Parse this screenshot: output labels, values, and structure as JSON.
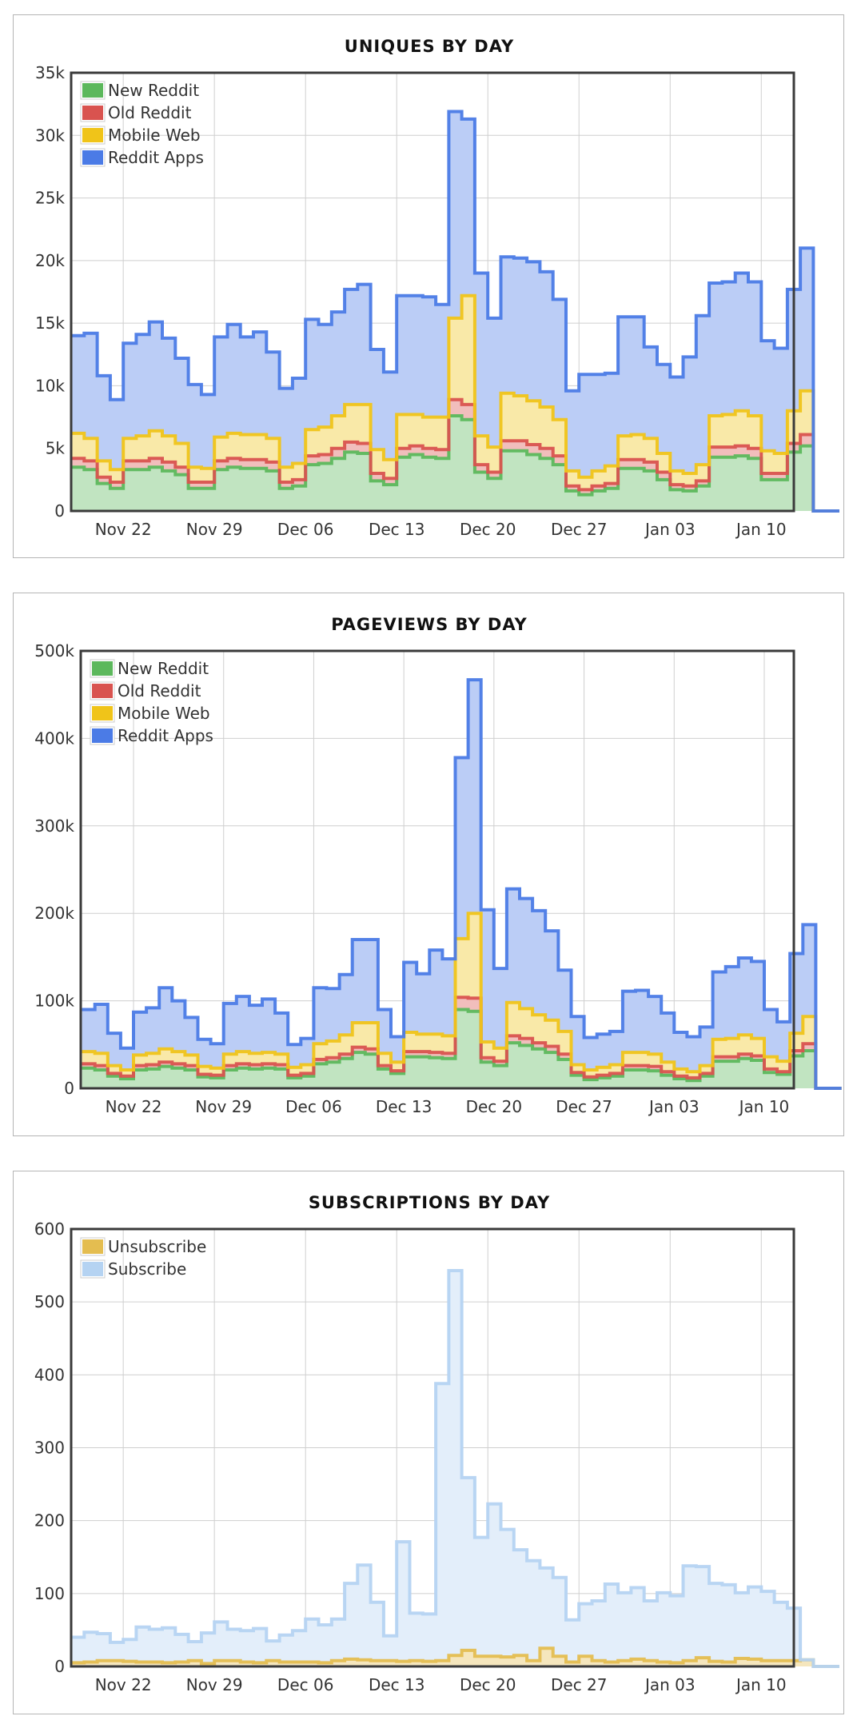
{
  "chart_data": [
    {
      "type": "area",
      "stacked": true,
      "step": true,
      "title": "UNIQUES BY DAY",
      "xlabel": "",
      "ylabel": "",
      "ylim": [
        0,
        35000
      ],
      "y_ticks": [
        "0",
        "5k",
        "10k",
        "15k",
        "20k",
        "25k",
        "30k",
        "35k"
      ],
      "x_ticks": [
        "Nov 22",
        "Nov 29",
        "Dec 06",
        "Dec 13",
        "Dec 20",
        "Dec 27",
        "Jan 03",
        "Jan 10"
      ],
      "x_tick_days": [
        4,
        11,
        18,
        25,
        32,
        39,
        46,
        53
      ],
      "xlim_days": [
        0,
        55.5
      ],
      "grid": true,
      "legend_position": "top-left",
      "series": [
        {
          "name": "New Reddit",
          "color": "#5cb85c",
          "values": [
            3500,
            3300,
            2200,
            1800,
            3300,
            3300,
            3500,
            3200,
            2900,
            1800,
            1800,
            3300,
            3500,
            3400,
            3400,
            3200,
            1800,
            2000,
            3700,
            3800,
            4200,
            4700,
            4600,
            2400,
            2100,
            4300,
            4500,
            4300,
            4200,
            7600,
            7300,
            3100,
            2600,
            4800,
            4800,
            4500,
            4200,
            3700,
            1600,
            1300,
            1600,
            1800,
            3400,
            3400,
            3200,
            2500,
            1700,
            1600,
            2000,
            4300,
            4300,
            4400,
            4200,
            2500,
            2500,
            4700,
            5200,
            0,
            0
          ]
        },
        {
          "name": "Old Reddit",
          "color": "#d9534f",
          "values": [
            700,
            700,
            500,
            500,
            700,
            700,
            700,
            700,
            600,
            500,
            500,
            700,
            700,
            700,
            700,
            700,
            500,
            500,
            700,
            700,
            800,
            800,
            800,
            600,
            500,
            700,
            700,
            700,
            700,
            1300,
            1200,
            600,
            500,
            800,
            800,
            800,
            800,
            700,
            400,
            400,
            400,
            400,
            700,
            700,
            700,
            600,
            400,
            400,
            400,
            800,
            800,
            800,
            800,
            500,
            500,
            700,
            900,
            0,
            0
          ]
        },
        {
          "name": "Mobile Web",
          "color": "#f0c419",
          "values": [
            2000,
            1800,
            1300,
            1000,
            1800,
            2000,
            2200,
            2100,
            1900,
            1200,
            1100,
            1900,
            2000,
            2000,
            2000,
            1900,
            1200,
            1300,
            2100,
            2200,
            2600,
            3000,
            3100,
            1900,
            1500,
            2700,
            2500,
            2500,
            2600,
            6500,
            8700,
            2300,
            2000,
            3800,
            3600,
            3500,
            3300,
            2900,
            1200,
            1000,
            1200,
            1400,
            1900,
            2000,
            1900,
            1500,
            1100,
            1000,
            1300,
            2500,
            2600,
            2800,
            2600,
            1800,
            1600,
            2600,
            3500,
            0,
            0
          ]
        },
        {
          "name": "Reddit Apps",
          "color": "#4b7be6",
          "values": [
            7800,
            8400,
            6800,
            5600,
            7600,
            8100,
            8700,
            7800,
            6800,
            6600,
            5900,
            8000,
            8700,
            7800,
            8200,
            6900,
            6300,
            6800,
            8800,
            8200,
            8300,
            9200,
            9600,
            8000,
            7000,
            9500,
            9500,
            9600,
            9000,
            16500,
            14100,
            13000,
            10300,
            10900,
            11000,
            11100,
            10800,
            9600,
            6400,
            8200,
            7700,
            7400,
            9500,
            9400,
            7300,
            7100,
            7500,
            9300,
            11900,
            10600,
            10600,
            11000,
            10700,
            8800,
            8400,
            9700,
            11400,
            0,
            0
          ]
        }
      ]
    },
    {
      "type": "area",
      "stacked": true,
      "step": true,
      "title": "PAGEVIEWS BY DAY",
      "xlabel": "",
      "ylabel": "",
      "ylim": [
        0,
        500000
      ],
      "y_ticks": [
        "0",
        "100k",
        "200k",
        "300k",
        "400k",
        "500k"
      ],
      "x_ticks": [
        "Nov 22",
        "Nov 29",
        "Dec 06",
        "Dec 13",
        "Dec 20",
        "Dec 27",
        "Jan 03",
        "Jan 10"
      ],
      "x_tick_days": [
        4,
        11,
        18,
        25,
        32,
        39,
        46,
        53
      ],
      "xlim_days": [
        -0.1,
        55.3
      ],
      "grid": true,
      "legend_position": "top-left",
      "series": [
        {
          "name": "New Reddit",
          "color": "#5cb85c",
          "values": [
            23000,
            21000,
            14000,
            11000,
            21000,
            22000,
            25000,
            23000,
            21000,
            13000,
            12000,
            21000,
            23000,
            22000,
            23000,
            22000,
            12000,
            14000,
            28000,
            30000,
            34000,
            41000,
            39000,
            22000,
            17000,
            36000,
            36000,
            35000,
            34000,
            90000,
            88000,
            30000,
            26000,
            52000,
            49000,
            45000,
            41000,
            33000,
            15000,
            10000,
            12000,
            14000,
            21000,
            21000,
            20000,
            15000,
            11000,
            9000,
            14000,
            31000,
            31000,
            34000,
            32000,
            18000,
            16000,
            37000,
            43000,
            0,
            0
          ]
        },
        {
          "name": "Old Reddit",
          "color": "#d9534f",
          "values": [
            5000,
            5000,
            3000,
            3000,
            5000,
            5000,
            5000,
            5000,
            5000,
            3000,
            3000,
            5000,
            5000,
            5000,
            5000,
            5000,
            3000,
            3000,
            5000,
            5000,
            5000,
            6000,
            6000,
            4000,
            3000,
            6000,
            6000,
            6000,
            6000,
            14000,
            15000,
            5000,
            5000,
            8000,
            8000,
            7000,
            7000,
            6000,
            3000,
            3000,
            3000,
            3000,
            5000,
            5000,
            5000,
            4000,
            3000,
            3000,
            3000,
            5000,
            5000,
            5000,
            5000,
            4000,
            3000,
            6000,
            8000,
            0,
            0
          ]
        },
        {
          "name": "Mobile Web",
          "color": "#f0c419",
          "values": [
            14000,
            14000,
            9000,
            7000,
            12000,
            13000,
            15000,
            14000,
            12000,
            9000,
            8000,
            13000,
            14000,
            13000,
            13000,
            12000,
            9000,
            10000,
            18000,
            19000,
            22000,
            28000,
            30000,
            14000,
            10000,
            22000,
            20000,
            21000,
            20000,
            67000,
            97000,
            18000,
            15000,
            38000,
            34000,
            32000,
            30000,
            26000,
            9000,
            8000,
            9000,
            10000,
            15000,
            15000,
            14000,
            11000,
            8000,
            7000,
            9000,
            20000,
            21000,
            22000,
            20000,
            14000,
            12000,
            20000,
            31000,
            0,
            0
          ]
        },
        {
          "name": "Reddit Apps",
          "color": "#4b7be6",
          "values": [
            48000,
            56000,
            37000,
            25000,
            49000,
            52000,
            70000,
            58000,
            43000,
            31000,
            28000,
            58000,
            63000,
            55000,
            61000,
            47000,
            26000,
            30000,
            64000,
            60000,
            69000,
            95000,
            95000,
            50000,
            29000,
            80000,
            69000,
            96000,
            88000,
            207000,
            267000,
            151000,
            91000,
            130000,
            126000,
            119000,
            102000,
            70000,
            55000,
            37000,
            38000,
            38000,
            70000,
            71000,
            66000,
            56000,
            42000,
            40000,
            44000,
            77000,
            82000,
            88000,
            88000,
            54000,
            45000,
            91000,
            105000,
            0,
            0
          ]
        }
      ]
    },
    {
      "type": "area",
      "stacked": true,
      "step": true,
      "title": "SUBSCRIPTIONS BY DAY",
      "xlabel": "",
      "ylabel": "",
      "ylim": [
        0,
        600
      ],
      "y_ticks": [
        "0",
        "100",
        "200",
        "300",
        "400",
        "500",
        "600"
      ],
      "x_ticks": [
        "Nov 22",
        "Nov 29",
        "Dec 06",
        "Dec 13",
        "Dec 20",
        "Dec 27",
        "Jan 03",
        "Jan 10"
      ],
      "x_tick_days": [
        4,
        11,
        18,
        25,
        32,
        39,
        46,
        53
      ],
      "xlim_days": [
        0,
        55.5
      ],
      "grid": true,
      "legend_position": "top-left",
      "series": [
        {
          "name": "Unsubscribe",
          "color": "#e4bd50",
          "values": [
            5,
            6,
            8,
            8,
            7,
            6,
            6,
            5,
            6,
            8,
            4,
            8,
            8,
            6,
            5,
            8,
            6,
            6,
            6,
            5,
            8,
            10,
            9,
            8,
            8,
            7,
            8,
            7,
            8,
            15,
            22,
            14,
            14,
            13,
            15,
            8,
            25,
            14,
            6,
            14,
            8,
            6,
            8,
            10,
            8,
            6,
            5,
            8,
            12,
            7,
            6,
            11,
            10,
            8,
            8,
            8,
            9,
            0,
            0
          ]
        },
        {
          "name": "Subscribe",
          "color": "#b5d3f2",
          "values": [
            35,
            41,
            37,
            25,
            30,
            48,
            45,
            48,
            38,
            26,
            42,
            53,
            43,
            43,
            47,
            27,
            37,
            43,
            59,
            52,
            57,
            104,
            130,
            80,
            34,
            164,
            65,
            65,
            380,
            528,
            237,
            163,
            209,
            175,
            145,
            137,
            110,
            108,
            58,
            72,
            82,
            107,
            93,
            98,
            82,
            95,
            92,
            130,
            125,
            107,
            106,
            90,
            99,
            95,
            80,
            72,
            0,
            0,
            0
          ]
        }
      ]
    }
  ]
}
